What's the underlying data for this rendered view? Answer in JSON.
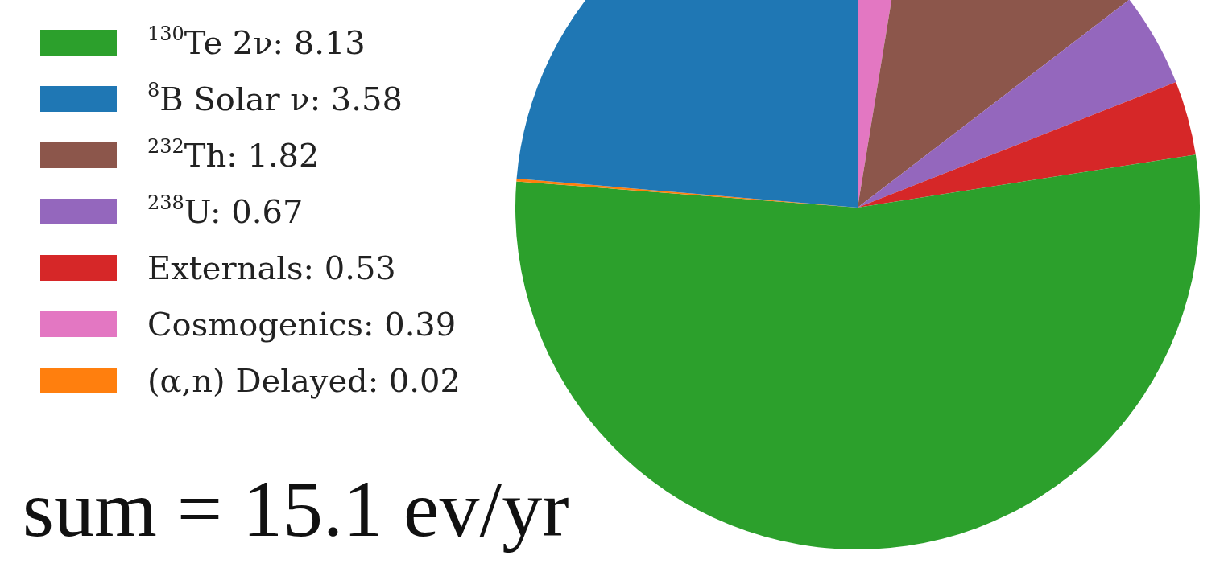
{
  "chart_data": {
    "type": "pie",
    "categories": [
      "Cosmogenics",
      "$^{232}$Th",
      "$^{238}$U",
      "Externals",
      "$^{130}$Te 2ν",
      "(α,n) Delayed",
      "$^{8}$B Solar ν"
    ],
    "values": [
      0.39,
      1.82,
      0.67,
      0.53,
      8.13,
      0.02,
      3.58
    ],
    "value_labels": [
      "0.39",
      "1.82",
      "0.67",
      "0.53",
      "8.13",
      "0.02",
      "3.58"
    ],
    "colors": [
      "#e377c2",
      "#8c564b",
      "#9467bd",
      "#d62728",
      "#2ca02c",
      "#ff7f0e",
      "#1f77b4"
    ],
    "legend": "left",
    "annotations": [
      "sum = 15.1 ev/yr"
    ]
  }
}
